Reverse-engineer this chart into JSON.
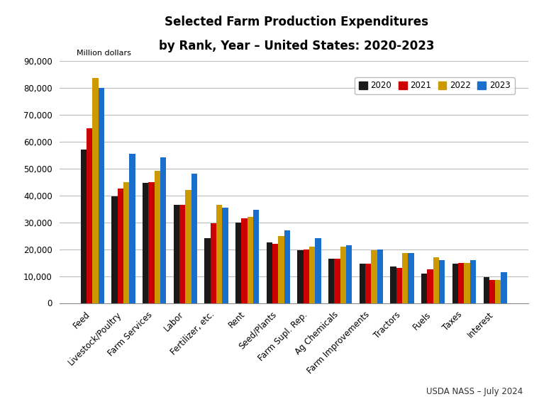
{
  "title_line1": "Selected Farm Production Expenditures",
  "title_line2": "by Rank, Year – United States: 2020-2023",
  "ylabel": "Million dollars",
  "categories": [
    "Feed",
    "Livestock/Poultry",
    "Farm Services",
    "Labor",
    "Fertilizer, etc.",
    "Rent",
    "Seed/Plants",
    "Farm Supl. Rep.",
    "Ag Chemicals",
    "Farm Improvements",
    "Tractors",
    "Fuels",
    "Taxes",
    "Interest"
  ],
  "years": [
    "2020",
    "2021",
    "2022",
    "2023"
  ],
  "colors": [
    "#1a1a1a",
    "#cc0000",
    "#cc9900",
    "#1a6fcc"
  ],
  "data": {
    "2020": [
      57000,
      39500,
      44500,
      36500,
      24000,
      30000,
      22500,
      19500,
      16500,
      14500,
      13500,
      11000,
      14500,
      9500
    ],
    "2021": [
      65000,
      42500,
      45000,
      36500,
      29500,
      31500,
      22000,
      20000,
      16500,
      14500,
      13000,
      12500,
      15000,
      8500
    ],
    "2022": [
      83500,
      45000,
      49000,
      42000,
      36500,
      32000,
      25000,
      21000,
      21000,
      19500,
      18500,
      17000,
      15000,
      8500
    ],
    "2023": [
      80000,
      55500,
      54000,
      48000,
      35500,
      34500,
      27000,
      24000,
      21500,
      20000,
      18500,
      16000,
      16000,
      11500
    ]
  },
  "ylim": [
    0,
    90000
  ],
  "yticks": [
    0,
    10000,
    20000,
    30000,
    40000,
    50000,
    60000,
    70000,
    80000,
    90000
  ],
  "ytick_labels": [
    "0",
    "10,000",
    "20,000",
    "30,000",
    "40,000",
    "50,000",
    "60,000",
    "70,000",
    "80,000",
    "90,000"
  ],
  "footer": "USDA NASS – July 2024",
  "background_color": "#ffffff",
  "grid_color": "#bbbbbb",
  "bar_width": 0.19
}
